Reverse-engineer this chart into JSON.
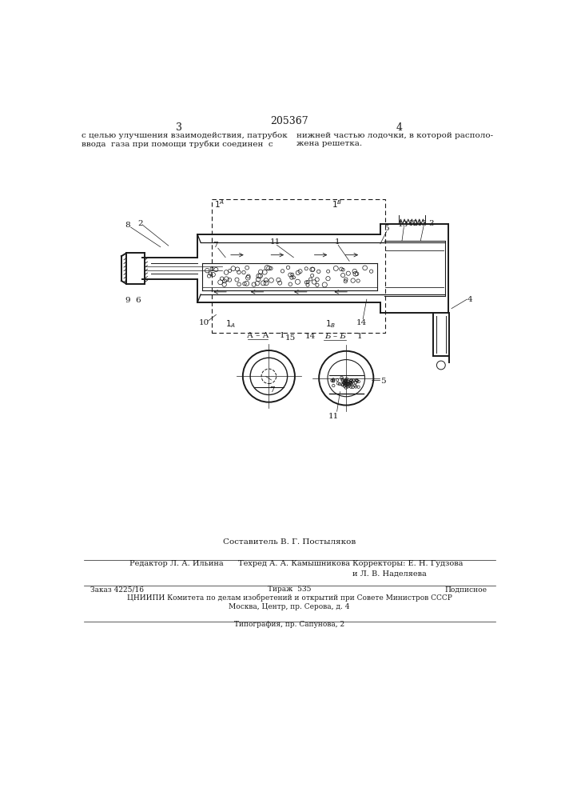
{
  "patent_number": "205367",
  "page_left": "3",
  "page_right": "4",
  "text_left": "с целью улучшения взаимодействия, патрубок\nввода  газа при помощи трубки соединен  с",
  "text_right": "нижней частью лодочки, в которой располо-\nжена решетка.",
  "bg_color": "#ffffff",
  "line_color": "#1a1a1a",
  "footer_line1": "Составитель В. Г. Постыляков",
  "footer_line2_a": "Редактор Л. А. Ильина",
  "footer_line2_b": "Техред А. А. Камышникова",
  "footer_line2_c": "Корректоры: Е. Н. Гудзова",
  "footer_line3": "и Л. В. Наделяева",
  "footer_order": "Заказ 4225/16",
  "footer_tirazh": "Тираж  535",
  "footer_podp": "Подписное",
  "footer_line5": "ЦНИИПИ Комитета по делам изобретений и открытий при Совете Министров СССР",
  "footer_line6": "Москва, Центр, пр. Серова, д. 4",
  "footer_line7": "Типография, пр. Сапунова, 2"
}
